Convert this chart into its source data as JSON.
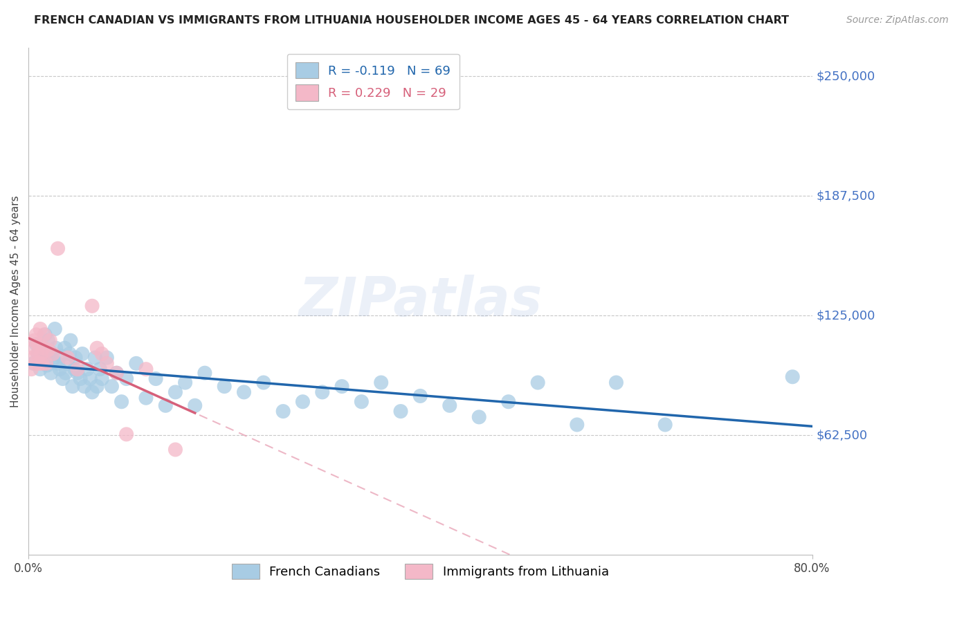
{
  "title": "FRENCH CANADIAN VS IMMIGRANTS FROM LITHUANIA HOUSEHOLDER INCOME AGES 45 - 64 YEARS CORRELATION CHART",
  "source": "Source: ZipAtlas.com",
  "ylabel": "Householder Income Ages 45 - 64 years",
  "x_min": 0.0,
  "x_max": 0.8,
  "y_min": 0,
  "y_max": 265000,
  "yticks": [
    0,
    62500,
    125000,
    187500,
    250000
  ],
  "ytick_labels": [
    "",
    "$62,500",
    "$125,000",
    "$187,500",
    "$250,000"
  ],
  "legend1_r": "-0.119",
  "legend1_n": "69",
  "legend2_r": "0.229",
  "legend2_n": "29",
  "legend1_label": "French Canadians",
  "legend2_label": "Immigrants from Lithuania",
  "blue_color": "#a8cce4",
  "pink_color": "#f4b8c8",
  "blue_line_color": "#2166ac",
  "pink_line_color": "#d6607a",
  "pink_dash_color": "#e8a0b4",
  "watermark": "ZIPatlas",
  "blue_x": [
    0.005,
    0.008,
    0.01,
    0.012,
    0.015,
    0.017,
    0.018,
    0.019,
    0.02,
    0.022,
    0.023,
    0.025,
    0.027,
    0.028,
    0.03,
    0.032,
    0.033,
    0.035,
    0.037,
    0.038,
    0.04,
    0.042,
    0.043,
    0.045,
    0.047,
    0.048,
    0.05,
    0.053,
    0.055,
    0.057,
    0.06,
    0.063,
    0.065,
    0.068,
    0.07,
    0.073,
    0.075,
    0.08,
    0.085,
    0.09,
    0.095,
    0.1,
    0.11,
    0.12,
    0.13,
    0.14,
    0.15,
    0.16,
    0.17,
    0.18,
    0.2,
    0.22,
    0.24,
    0.26,
    0.28,
    0.3,
    0.32,
    0.34,
    0.36,
    0.38,
    0.4,
    0.43,
    0.46,
    0.49,
    0.52,
    0.56,
    0.6,
    0.65,
    0.78
  ],
  "blue_y": [
    100000,
    110000,
    105000,
    97000,
    108000,
    115000,
    103000,
    99000,
    112000,
    106000,
    95000,
    102000,
    118000,
    108000,
    100000,
    97000,
    104000,
    92000,
    108000,
    95000,
    100000,
    105000,
    112000,
    88000,
    97000,
    103000,
    95000,
    92000,
    105000,
    88000,
    97000,
    92000,
    85000,
    103000,
    88000,
    97000,
    92000,
    103000,
    88000,
    95000,
    80000,
    92000,
    100000,
    82000,
    92000,
    78000,
    85000,
    90000,
    78000,
    95000,
    88000,
    85000,
    90000,
    75000,
    80000,
    85000,
    88000,
    80000,
    90000,
    75000,
    83000,
    78000,
    72000,
    80000,
    90000,
    68000,
    90000,
    68000,
    93000
  ],
  "pink_x": [
    0.003,
    0.004,
    0.005,
    0.006,
    0.007,
    0.008,
    0.009,
    0.01,
    0.011,
    0.012,
    0.013,
    0.014,
    0.015,
    0.016,
    0.018,
    0.02,
    0.022,
    0.025,
    0.03,
    0.04,
    0.05,
    0.065,
    0.07,
    0.075,
    0.08,
    0.09,
    0.1,
    0.12,
    0.15
  ],
  "pink_y": [
    97000,
    103000,
    108000,
    112000,
    100000,
    115000,
    105000,
    110000,
    100000,
    118000,
    105000,
    100000,
    108000,
    115000,
    100000,
    107000,
    112000,
    105000,
    160000,
    103000,
    97000,
    130000,
    108000,
    105000,
    100000,
    95000,
    63000,
    97000,
    55000
  ]
}
